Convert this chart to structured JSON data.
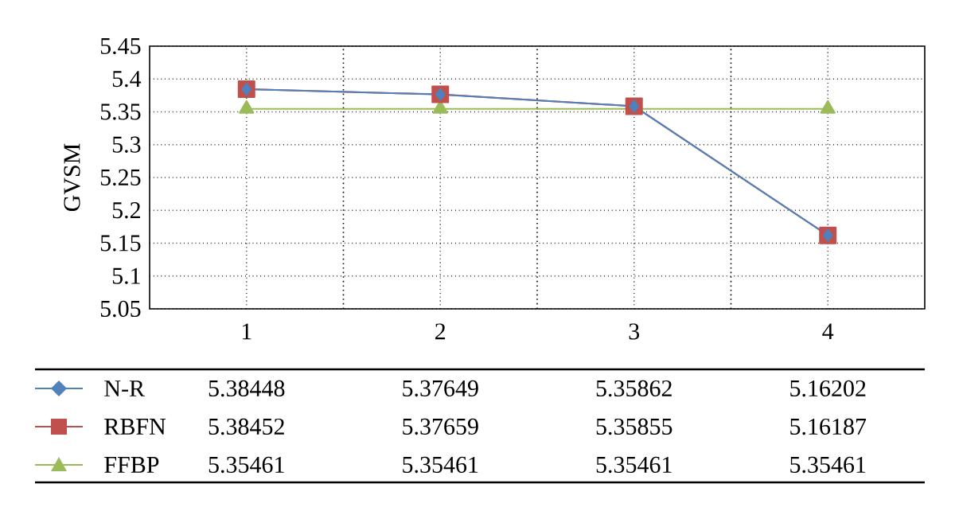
{
  "chart_data": {
    "type": "line",
    "ylabel": "GVSM",
    "categories": [
      "1",
      "2",
      "3",
      "4"
    ],
    "series": [
      {
        "name": "N-R",
        "color": "#4f81bd",
        "marker": "diamond",
        "values": [
          5.38448,
          5.37649,
          5.35862,
          5.16202
        ]
      },
      {
        "name": "RBFN",
        "color": "#c0504d",
        "marker": "square",
        "values": [
          5.38452,
          5.37659,
          5.35855,
          5.16187
        ]
      },
      {
        "name": "FFBP",
        "color": "#9bbb59",
        "marker": "triangle",
        "values": [
          5.35461,
          5.35461,
          5.35461,
          5.35461
        ]
      }
    ],
    "ylim": [
      5.05,
      5.45
    ],
    "yticks": [
      5.05,
      5.1,
      5.15,
      5.2,
      5.25,
      5.3,
      5.35,
      5.4,
      5.45
    ],
    "grid": true,
    "legend": "bottom",
    "data_labels": true,
    "line_style": "solid"
  }
}
